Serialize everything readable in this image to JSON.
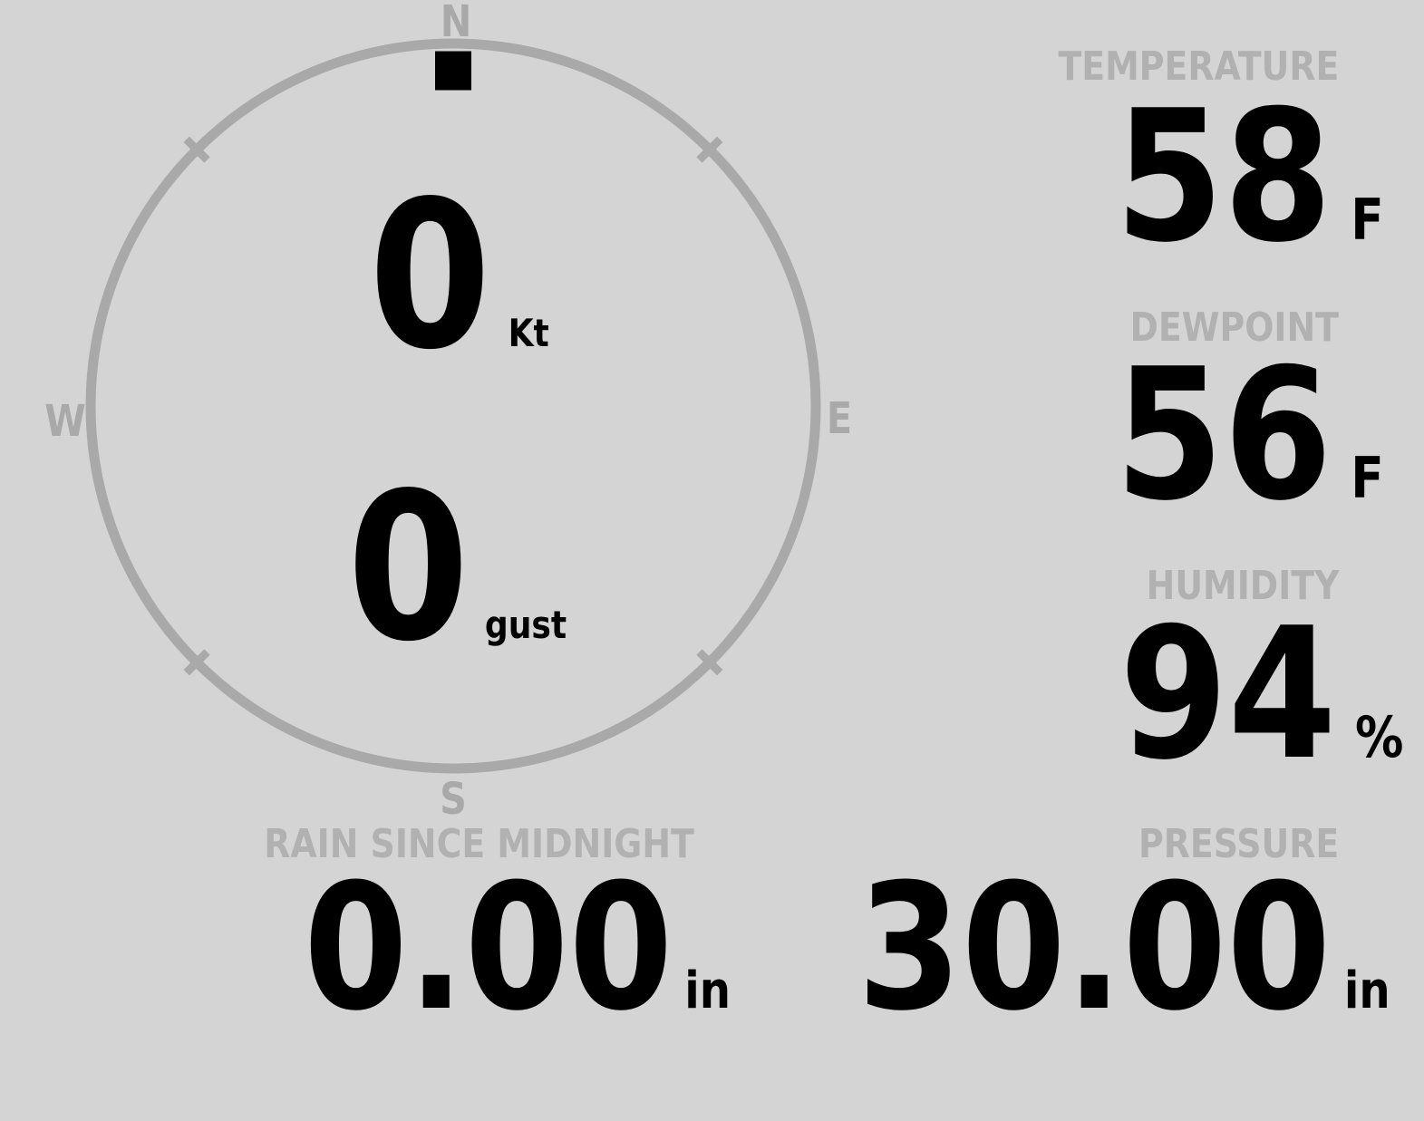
{
  "colors": {
    "background": "#d4d4d4",
    "compass": "#a9a9a9",
    "label": "#b1b1b1",
    "value": "#000000"
  },
  "compass": {
    "cardinals": {
      "north": "N",
      "east": "E",
      "south": "S",
      "west": "W"
    },
    "wind_direction_deg": 0,
    "speed": {
      "value": "0",
      "unit": "Kt"
    },
    "gust": {
      "value": "0",
      "unit": "gust"
    }
  },
  "metrics": {
    "temperature": {
      "label": "TEMPERATURE",
      "value": "58",
      "unit": "F"
    },
    "dewpoint": {
      "label": "DEWPOINT",
      "value": "56",
      "unit": "F"
    },
    "humidity": {
      "label": "HUMIDITY",
      "value": "94",
      "unit": "%"
    },
    "rain": {
      "label": "RAIN SINCE MIDNIGHT",
      "value": "0.00",
      "unit": "in"
    },
    "pressure": {
      "label": "PRESSURE",
      "value": "30.00",
      "unit": "in"
    }
  }
}
